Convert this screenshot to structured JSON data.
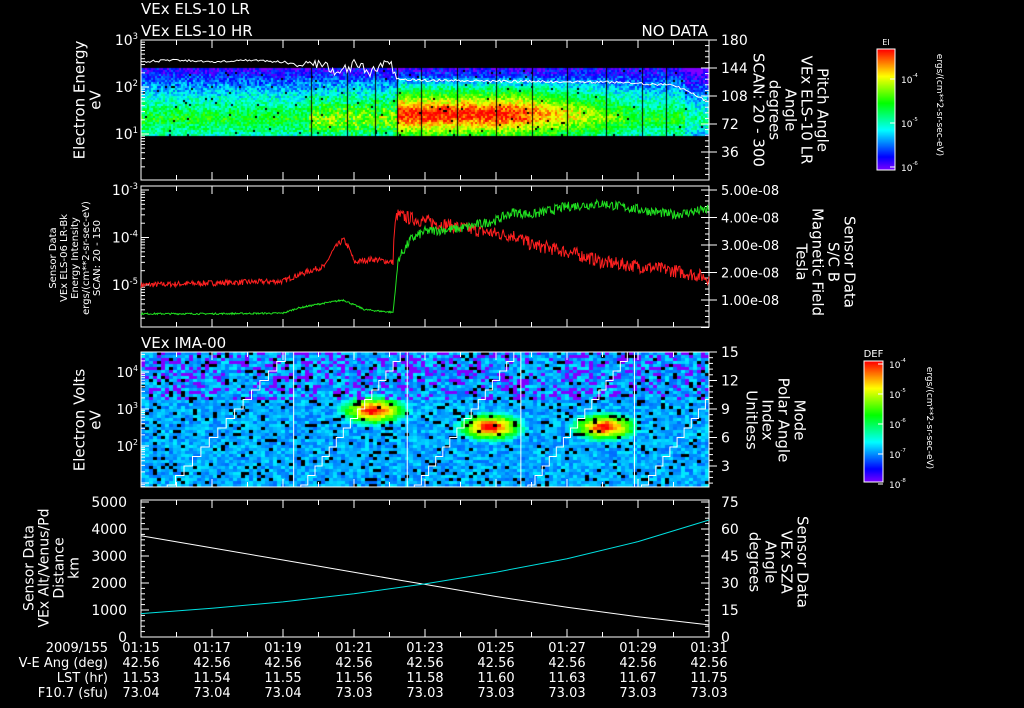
{
  "header": {
    "line1": "VEx ELS-10 LR",
    "line2": "VEx ELS-10 HR",
    "no_data": "NO DATA"
  },
  "colors": {
    "white": "#ffffff",
    "red": "#ff2020",
    "green": "#20e020",
    "cyan": "#00e0e0",
    "background": "#000000"
  },
  "time_axis": {
    "start_minute": 15,
    "end_minute": 31,
    "row_labels": [
      "2009/155",
      "V-E Ang (deg)",
      "LST (hr)",
      "F10.7 (sfu)"
    ],
    "columns": [
      {
        "time": "01:15",
        "ve_ang": "42.56",
        "lst": "11.53",
        "f107": "73.04"
      },
      {
        "time": "01:17",
        "ve_ang": "42.56",
        "lst": "11.54",
        "f107": "73.04"
      },
      {
        "time": "01:19",
        "ve_ang": "42.56",
        "lst": "11.55",
        "f107": "73.04"
      },
      {
        "time": "01:21",
        "ve_ang": "42.56",
        "lst": "11.56",
        "f107": "73.03"
      },
      {
        "time": "01:23",
        "ve_ang": "42.56",
        "lst": "11.58",
        "f107": "73.03"
      },
      {
        "time": "01:25",
        "ve_ang": "42.56",
        "lst": "11.60",
        "f107": "73.03"
      },
      {
        "time": "01:27",
        "ve_ang": "42.56",
        "lst": "11.63",
        "f107": "73.03"
      },
      {
        "time": "01:29",
        "ve_ang": "42.56",
        "lst": "11.67",
        "f107": "73.03"
      },
      {
        "time": "01:31",
        "ve_ang": "42.56",
        "lst": "11.75",
        "f107": "73.03"
      }
    ]
  },
  "chart_data": [
    {
      "type": "heatmap",
      "title": "VEx ELS-10 LR / HR",
      "ylabel": [
        "Electron Energy",
        "eV"
      ],
      "y_ticks": [
        "10^3",
        "10^2",
        "10^1"
      ],
      "y_tick_text": [
        {
          "base": "10",
          "exp": "3"
        },
        {
          "base": "10",
          "exp": "2"
        },
        {
          "base": "10",
          "exp": "1"
        }
      ],
      "ylim_log10": [
        0,
        3
      ],
      "right_label": [
        "Pitch Angle",
        "VEx ELS-10 LR",
        "Angle",
        "degrees",
        "SCAN: 20 - 300"
      ],
      "right_ticks": [
        "180",
        "144",
        "108",
        "72",
        "36"
      ],
      "right_ylim": [
        0,
        180
      ],
      "colorbar": {
        "title": "EI",
        "ticks": [
          "10^-4",
          "10^-5",
          "10^-6"
        ],
        "tick_text": [
          {
            "base": "10",
            "exp": "-4"
          },
          {
            "base": "10",
            "exp": "-5"
          },
          {
            "base": "10",
            "exp": "-6"
          }
        ],
        "units": "ergs/(cm**2-sr-sec-eV)"
      },
      "pitch_angle_series": {
        "x_minutes": [
          15,
          16,
          17,
          18,
          19,
          19.5,
          20,
          20.5,
          21,
          21.5,
          22,
          22.2,
          23,
          24,
          25,
          26,
          27,
          28,
          29,
          30,
          30.5,
          31
        ],
        "y": [
          152,
          154,
          152,
          154,
          152,
          146,
          150,
          140,
          148,
          138,
          152,
          130,
          128,
          128,
          127,
          127,
          126,
          126,
          124,
          122,
          112,
          100
        ]
      },
      "energy_range_eV": [
        9,
        250
      ],
      "intense_interval_minutes": [
        22.2,
        25.5
      ]
    },
    {
      "type": "line",
      "left_label": [
        "Sensor Data",
        "VEx ELS-06 LR-Bk",
        "Energy Intensity",
        "ergs/(cm**2-sr-sec-eV)",
        "SCAN: 20 - 150"
      ],
      "left_ticks": [
        "10^-3",
        "10^-4",
        "10^-5"
      ],
      "left_tick_text": [
        {
          "base": "10",
          "exp": "-3"
        },
        {
          "base": "10",
          "exp": "-4"
        },
        {
          "base": "10",
          "exp": "-5"
        }
      ],
      "right_label": [
        "Sensor Data",
        "S/C B",
        "Magnetic Field",
        "Tesla"
      ],
      "right_ticks": [
        "5.00e-08",
        "4.00e-08",
        "3.00e-08",
        "2.00e-08",
        "1.00e-08"
      ],
      "right_ylim": [
        0,
        5e-08
      ],
      "series": [
        {
          "name": "Energy Intensity",
          "color": "#ff2020",
          "axis": "left",
          "x_minutes": [
            15,
            17,
            19,
            19.6,
            20.2,
            20.7,
            21,
            21.5,
            22.1,
            22.2,
            22.6,
            23,
            24,
            25,
            25.5,
            26,
            27,
            28,
            29,
            30,
            31
          ],
          "y": [
            1e-05,
            1.1e-05,
            1.2e-05,
            1.8e-05,
            2.5e-05,
            9e-05,
            3e-05,
            3.5e-05,
            3e-05,
            0.0003,
            0.00025,
            0.00022,
            0.00016,
            0.00012,
            0.00011,
            7e-05,
            5e-05,
            3e-05,
            2.5e-05,
            2e-05,
            1.4e-05
          ]
        },
        {
          "name": "Magnetic Field",
          "color": "#20e020",
          "axis": "right",
          "x_minutes": [
            15,
            17,
            19,
            19.4,
            20,
            20.7,
            21.3,
            22.1,
            22.25,
            22.6,
            23,
            24,
            25,
            25.5,
            26,
            27,
            28,
            29,
            30,
            31
          ],
          "y": [
            5e-09,
            5e-09,
            5.2e-09,
            7e-09,
            8.5e-09,
            1e-08,
            6.5e-09,
            5.5e-09,
            2.5e-08,
            3.2e-08,
            3.5e-08,
            3.6e-08,
            3.9e-08,
            4.2e-08,
            4.1e-08,
            4.4e-08,
            4.5e-08,
            4.3e-08,
            4.1e-08,
            4.3e-08
          ]
        }
      ]
    },
    {
      "type": "heatmap",
      "title": "VEx IMA-00",
      "ylabel": [
        "Electron Volts",
        "eV"
      ],
      "y_ticks": [
        "10^4",
        "10^3",
        "10^2"
      ],
      "y_tick_text": [
        {
          "base": "10",
          "exp": "4"
        },
        {
          "base": "10",
          "exp": "3"
        },
        {
          "base": "10",
          "exp": "2"
        }
      ],
      "right_label": [
        "Mode",
        "Polar Angle",
        "Index",
        "Unitless"
      ],
      "right_ticks": [
        "15",
        "12",
        "9",
        "6",
        "3"
      ],
      "right_ylim": [
        0,
        15
      ],
      "colorbar": {
        "title": "DEF",
        "ticks": [
          "10^-4",
          "10^-5",
          "10^-6",
          "10^-7",
          "10^-8"
        ],
        "tick_text": [
          {
            "base": "10",
            "exp": "-4"
          },
          {
            "base": "10",
            "exp": "-5"
          },
          {
            "base": "10",
            "exp": "-6"
          },
          {
            "base": "10",
            "exp": "-7"
          },
          {
            "base": "10",
            "exp": "-8"
          }
        ],
        "units": "ergs/(cm**2-sr-sec-eV)"
      },
      "scan_boundaries_minutes": [
        19.3,
        22.5,
        25.7,
        28.9
      ],
      "hot_spots": [
        {
          "minute": 21.5,
          "log10_eV": 3.0
        },
        {
          "minute": 24.8,
          "log10_eV": 2.55
        },
        {
          "minute": 28.0,
          "log10_eV": 2.55
        }
      ]
    },
    {
      "type": "line",
      "left_label": [
        "Sensor Data",
        "VEx Alt/Venus/Pd",
        "Distance",
        "km"
      ],
      "left_ticks": [
        "5000",
        "4000",
        "3000",
        "2000",
        "1000",
        "0"
      ],
      "ylim": [
        0,
        5000
      ],
      "right_label": [
        "Sensor Data",
        "VEx SZA",
        "Angle",
        "degrees"
      ],
      "right_ticks": [
        "75",
        "60",
        "45",
        "30",
        "15",
        "0"
      ],
      "right_ylim": [
        0,
        75
      ],
      "series": [
        {
          "name": "Altitude",
          "color": "#ffffff",
          "axis": "left",
          "x_minutes": [
            15,
            17,
            19,
            21,
            22.3,
            23,
            25,
            27,
            29,
            31
          ],
          "y": [
            3750,
            3300,
            2850,
            2400,
            2100,
            1950,
            1500,
            1100,
            750,
            450
          ]
        },
        {
          "name": "SZA",
          "color": "#00e0e0",
          "axis": "right",
          "x_minutes": [
            15,
            17,
            19,
            21,
            23,
            25,
            27,
            29,
            31
          ],
          "y": [
            13,
            16,
            19.5,
            24,
            29.5,
            36,
            43.5,
            53,
            65
          ]
        }
      ]
    }
  ]
}
